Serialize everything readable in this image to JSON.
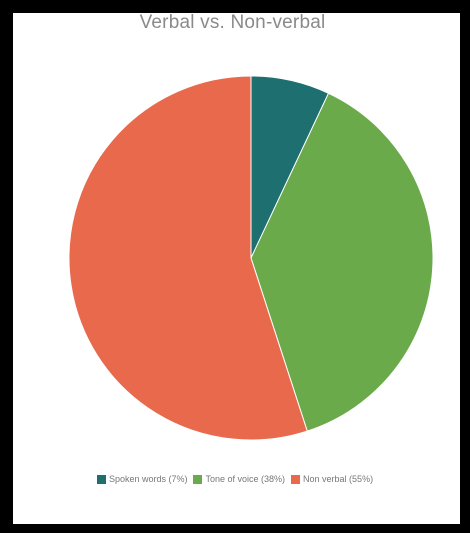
{
  "chart_data": {
    "type": "pie",
    "title": "Verbal vs. Non-verbal",
    "slices": [
      {
        "label": "Spoken words (7%)",
        "value": 7,
        "color": "#1e7070"
      },
      {
        "label": "Tone of voice (38%)",
        "value": 38,
        "color": "#6aaa4b"
      },
      {
        "label": "Non verbal (55%)",
        "value": 55,
        "color": "#e8694c"
      }
    ],
    "legend_position": "bottom"
  }
}
